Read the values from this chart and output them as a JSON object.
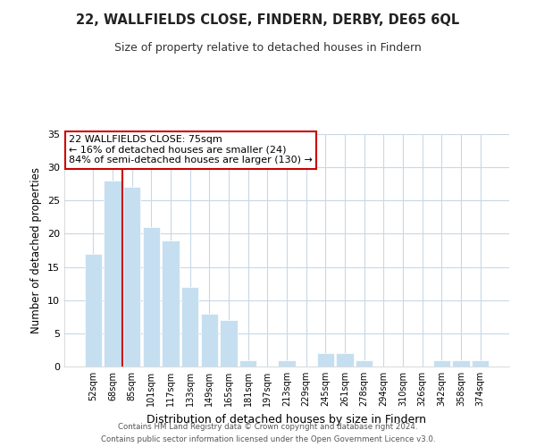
{
  "title": "22, WALLFIELDS CLOSE, FINDERN, DERBY, DE65 6QL",
  "subtitle": "Size of property relative to detached houses in Findern",
  "xlabel": "Distribution of detached houses by size in Findern",
  "ylabel": "Number of detached properties",
  "bar_labels": [
    "52sqm",
    "68sqm",
    "85sqm",
    "101sqm",
    "117sqm",
    "133sqm",
    "149sqm",
    "165sqm",
    "181sqm",
    "197sqm",
    "213sqm",
    "229sqm",
    "245sqm",
    "261sqm",
    "278sqm",
    "294sqm",
    "310sqm",
    "326sqm",
    "342sqm",
    "358sqm",
    "374sqm"
  ],
  "bar_values": [
    17,
    28,
    27,
    21,
    19,
    12,
    8,
    7,
    1,
    0,
    1,
    0,
    2,
    2,
    1,
    0,
    0,
    0,
    1,
    1,
    1
  ],
  "bar_color": "#c5dff0",
  "bar_edge_color": "#ffffff",
  "background_color": "#ffffff",
  "grid_color": "#c8d8e8",
  "vline_x": 1.5,
  "vline_color": "#cc0000",
  "annotation_text": "22 WALLFIELDS CLOSE: 75sqm\n← 16% of detached houses are smaller (24)\n84% of semi-detached houses are larger (130) →",
  "annotation_box_edge": "#cc0000",
  "ylim": [
    0,
    35
  ],
  "yticks": [
    0,
    5,
    10,
    15,
    20,
    25,
    30,
    35
  ],
  "footer1": "Contains HM Land Registry data © Crown copyright and database right 2024.",
  "footer2": "Contains public sector information licensed under the Open Government Licence v3.0."
}
